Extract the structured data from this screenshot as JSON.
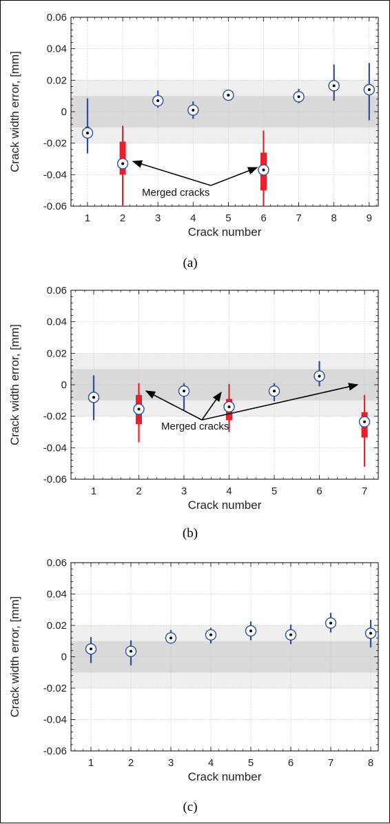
{
  "figure": {
    "panels": [
      {
        "caption": "(a)",
        "xlabel": "Crack number",
        "ylabel": "Crack width error, [mm]",
        "ylim": [
          -0.06,
          0.06
        ],
        "xticks": [
          "1",
          "2",
          "3",
          "4",
          "5",
          "6",
          "7",
          "8",
          "9"
        ],
        "yticks": [
          "0.06",
          "0.04",
          "0.02",
          "0",
          "-0.02",
          "-0.04",
          "-0.06"
        ],
        "annotation": "Merged cracks"
      },
      {
        "caption": "(b)",
        "xlabel": "Crack number",
        "ylabel": "Crack width error, [mm]",
        "ylim": [
          -0.06,
          0.06
        ],
        "xticks": [
          "1",
          "2",
          "3",
          "4",
          "5",
          "6",
          "7"
        ],
        "yticks": [
          "0.06",
          "0.04",
          "0.02",
          "0",
          "-0.02",
          "-0.04",
          "-0.06"
        ],
        "annotation": "Merged cracks"
      },
      {
        "caption": "(c)",
        "xlabel": "Crack number",
        "ylabel": "Crack width error, [mm]",
        "ylim": [
          -0.06,
          0.06
        ],
        "xticks": [
          "1",
          "2",
          "3",
          "4",
          "5",
          "6",
          "7",
          "8"
        ],
        "yticks": [
          "0.06",
          "0.04",
          "0.02",
          "0",
          "-0.02",
          "-0.04",
          "-0.06"
        ],
        "annotation": ""
      }
    ]
  },
  "chart_data": [
    {
      "type": "boxplot",
      "ylim": [
        -0.06,
        0.06
      ],
      "bands": {
        "inner": [
          -0.01,
          0.01
        ],
        "outer": [
          -0.02,
          0.02
        ]
      },
      "grid": true,
      "colors": {
        "normal": "#2a4d9e",
        "merged": "#e8202a",
        "inner_band": "#d9d9d9",
        "outer_band": "#efefef"
      },
      "cracks": [
        {
          "x": 1,
          "median": -0.0135,
          "q1": -0.0155,
          "q3": -0.0095,
          "lo": -0.0265,
          "hi": 0.0085,
          "merged": false
        },
        {
          "x": 2,
          "median": -0.033,
          "q1": -0.04,
          "q3": -0.019,
          "lo": -0.06,
          "hi": -0.009,
          "merged": true
        },
        {
          "x": 3,
          "median": 0.007,
          "q1": 0.0055,
          "q3": 0.0085,
          "lo": 0.0025,
          "hi": 0.0135,
          "merged": false
        },
        {
          "x": 4,
          "median": 0.001,
          "q1": 0.0,
          "q3": 0.002,
          "lo": -0.0045,
          "hi": 0.0065,
          "merged": false
        },
        {
          "x": 5,
          "median": 0.0105,
          "q1": 0.009,
          "q3": 0.0115,
          "lo": 0.0075,
          "hi": 0.0125,
          "merged": false
        },
        {
          "x": 6,
          "median": -0.037,
          "q1": -0.05,
          "q3": -0.026,
          "lo": -0.06,
          "hi": -0.012,
          "merged": true
        },
        {
          "x": 7,
          "median": 0.0095,
          "q1": 0.0085,
          "q3": 0.0105,
          "lo": 0.0055,
          "hi": 0.0145,
          "merged": false
        },
        {
          "x": 8,
          "median": 0.0165,
          "q1": 0.015,
          "q3": 0.018,
          "lo": 0.007,
          "hi": 0.03,
          "merged": false
        },
        {
          "x": 9,
          "median": 0.014,
          "q1": 0.0105,
          "q3": 0.0175,
          "lo": -0.0055,
          "hi": 0.031,
          "merged": false
        }
      ]
    },
    {
      "type": "boxplot",
      "ylim": [
        -0.06,
        0.06
      ],
      "bands": {
        "inner": [
          -0.01,
          0.01
        ],
        "outer": [
          -0.02,
          0.02
        ]
      },
      "grid": true,
      "colors": {
        "normal": "#2a4d9e",
        "merged": "#e8202a",
        "inner_band": "#d9d9d9",
        "outer_band": "#efefef"
      },
      "cracks": [
        {
          "x": 1,
          "median": -0.008,
          "q1": -0.0105,
          "q3": -0.0045,
          "lo": -0.0225,
          "hi": 0.006,
          "merged": false
        },
        {
          "x": 2,
          "median": -0.0155,
          "q1": -0.025,
          "q3": -0.0065,
          "lo": -0.0365,
          "hi": 0.001,
          "merged": true
        },
        {
          "x": 3,
          "median": -0.004,
          "q1": -0.0055,
          "q3": -0.0025,
          "lo": -0.016,
          "hi": 0.001,
          "merged": false
        },
        {
          "x": 4,
          "median": -0.014,
          "q1": -0.0225,
          "q3": -0.009,
          "lo": -0.03,
          "hi": 0.0005,
          "merged": true
        },
        {
          "x": 5,
          "median": -0.004,
          "q1": -0.0055,
          "q3": -0.0025,
          "lo": -0.0105,
          "hi": 0.001,
          "merged": false
        },
        {
          "x": 6,
          "median": 0.0055,
          "q1": 0.0045,
          "q3": 0.0065,
          "lo": -0.001,
          "hi": 0.015,
          "merged": false
        },
        {
          "x": 7,
          "median": -0.0235,
          "q1": -0.0335,
          "q3": -0.0175,
          "lo": -0.052,
          "hi": -0.0065,
          "merged": true
        }
      ]
    },
    {
      "type": "boxplot",
      "ylim": [
        -0.06,
        0.06
      ],
      "bands": {
        "inner": [
          -0.01,
          0.01
        ],
        "outer": [
          -0.02,
          0.02
        ]
      },
      "grid": true,
      "colors": {
        "normal": "#2a4d9e",
        "merged": "#e8202a",
        "inner_band": "#d9d9d9",
        "outer_band": "#efefef"
      },
      "cracks": [
        {
          "x": 1,
          "median": 0.005,
          "q1": 0.004,
          "q3": 0.006,
          "lo": -0.004,
          "hi": 0.0125,
          "merged": false
        },
        {
          "x": 2,
          "median": 0.0035,
          "q1": 0.0025,
          "q3": 0.0045,
          "lo": -0.0055,
          "hi": 0.0105,
          "merged": false
        },
        {
          "x": 3,
          "median": 0.012,
          "q1": 0.011,
          "q3": 0.013,
          "lo": 0.0085,
          "hi": 0.017,
          "merged": false
        },
        {
          "x": 4,
          "median": 0.014,
          "q1": 0.013,
          "q3": 0.015,
          "lo": 0.0085,
          "hi": 0.0185,
          "merged": false
        },
        {
          "x": 5,
          "median": 0.0165,
          "q1": 0.0155,
          "q3": 0.0175,
          "lo": 0.0105,
          "hi": 0.0225,
          "merged": false
        },
        {
          "x": 6,
          "median": 0.014,
          "q1": 0.013,
          "q3": 0.015,
          "lo": 0.008,
          "hi": 0.0205,
          "merged": false
        },
        {
          "x": 7,
          "median": 0.0215,
          "q1": 0.0205,
          "q3": 0.0225,
          "lo": 0.0155,
          "hi": 0.028,
          "merged": false
        },
        {
          "x": 8,
          "median": 0.015,
          "q1": 0.014,
          "q3": 0.016,
          "lo": 0.006,
          "hi": 0.0235,
          "merged": false
        }
      ]
    }
  ]
}
